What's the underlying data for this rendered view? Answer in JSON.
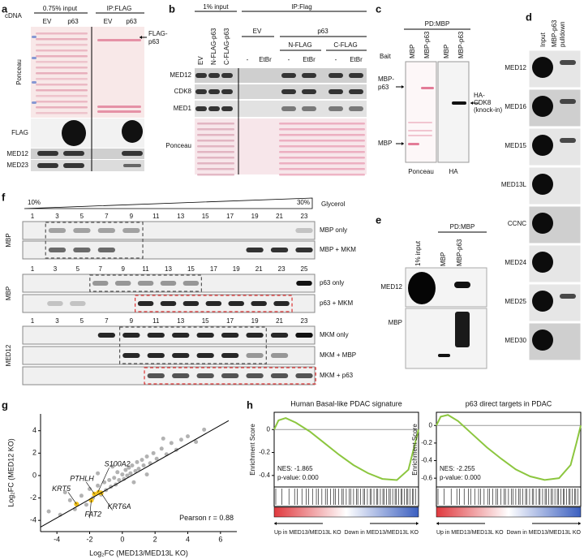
{
  "panels": {
    "a": {
      "label": "a",
      "cdna": "cDNA",
      "input_header": "0.75% input",
      "ip_header": "IP:FLAG",
      "lanes": [
        "EV",
        "p63",
        "EV",
        "p63"
      ],
      "band_label": [
        "FLAG-",
        "p63"
      ],
      "rows": [
        "Ponceau",
        "FLAG",
        "MED12",
        "MED23"
      ]
    },
    "b": {
      "label": "b",
      "input_header": "1% input",
      "ip_header": "IP:Flag",
      "input_lanes": [
        "EV",
        "N-FLAG-p63",
        "C-FLAG-p63"
      ],
      "ip_groups": [
        "EV",
        "p63"
      ],
      "ip_subgroups": [
        "N-FLAG",
        "C-FLAG"
      ],
      "treatments": [
        "-",
        "EtBr",
        "-",
        "EtBr",
        "-",
        "EtBr"
      ],
      "rows": [
        "MED12",
        "CDK8",
        "MED1",
        "Ponceau"
      ]
    },
    "c": {
      "label": "c",
      "header": "PD:MBP",
      "bait": "Bait",
      "lanes": [
        "MBP",
        "MBP-p63",
        "MBP",
        "MBP-p63"
      ],
      "left_labels": [
        [
          "MBP-",
          "p63"
        ],
        [
          "MBP"
        ]
      ],
      "right_label": [
        "HA-",
        "CDK8",
        "(knock-in)"
      ],
      "bottom": [
        "Ponceau",
        "HA"
      ]
    },
    "d": {
      "label": "d",
      "lanes": [
        [
          "Input"
        ],
        [
          "MBP-p63",
          "pulldown"
        ]
      ],
      "rows": [
        "MED12",
        "MED16",
        "MED15",
        "MED13L",
        "CCNC",
        "MED24",
        "MED25",
        "MED30"
      ]
    },
    "e": {
      "label": "e",
      "header": "PD:MBP",
      "lanes": [
        "1% input",
        "MBP",
        "MBP-p63"
      ],
      "rows": [
        "MED12",
        "MBP"
      ]
    },
    "f": {
      "label": "f",
      "gradient_low": "10%",
      "gradient_high": "30%",
      "gradient_label": "Glycerol",
      "blocks": [
        {
          "side": "MBP",
          "lanes": [
            "1",
            "3",
            "5",
            "7",
            "9",
            "11",
            "13",
            "15",
            "17",
            "19",
            "21",
            "23"
          ],
          "rows": [
            "MBP only",
            "MBP + MKM"
          ]
        },
        {
          "side": "MBP",
          "lanes": [
            "1",
            "3",
            "5",
            "7",
            "9",
            "11",
            "13",
            "15",
            "17",
            "19",
            "21",
            "23",
            "25"
          ],
          "rows": [
            "p63 only",
            "p63 + MKM"
          ]
        },
        {
          "side": "MED12",
          "lanes": [
            "1",
            "3",
            "5",
            "7",
            "9",
            "11",
            "13",
            "15",
            "17",
            "19",
            "21",
            "23"
          ],
          "rows": [
            "MKM only",
            "MKM + MBP",
            "MKM + p63"
          ]
        }
      ]
    }
  },
  "chart_data": [
    {
      "type": "scatter",
      "panel_label": "g",
      "x_label": "Log₂FC (MED13/MED13L KO)",
      "y_label": "Log₂FC (MED12 KO)",
      "xlim": [
        -5,
        7
      ],
      "ylim": [
        -5,
        5.5
      ],
      "xticks": [
        -4,
        -2,
        0,
        2,
        4,
        6
      ],
      "yticks": [
        -4,
        -2,
        0,
        2,
        4
      ],
      "series": [
        {
          "color": "#555555",
          "x": [
            -4.5,
            -3.8,
            -3.2,
            -2.9,
            -2.5,
            -2.2,
            -2,
            -1.8,
            -1.5,
            -1.3,
            -1.1,
            -1,
            -0.8,
            -0.7,
            -0.5,
            -0.4,
            -0.3,
            -0.2,
            0,
            0.1,
            0.2,
            0.3,
            0.4,
            0.5,
            0.6,
            0.8,
            0.9,
            1,
            1.2,
            1.3,
            1.5,
            1.7,
            1.9,
            2.1,
            2.4,
            2.7,
            3,
            3.3,
            3.6,
            4,
            4.5,
            5,
            -0.6,
            0.7,
            1.5,
            -1.5,
            2.5,
            -3.5
          ],
          "values": [
            -3.2,
            -3.5,
            -2.2,
            -3,
            -1.8,
            -2.6,
            -1.2,
            -2,
            -0.9,
            -1.7,
            -0.6,
            -1.3,
            -0.4,
            -1,
            -0.2,
            -0.8,
            0.3,
            -0.4,
            0.1,
            -0.3,
            0.5,
            0,
            0.7,
            0.2,
            0.9,
            0.4,
            1.2,
            0.6,
            1.4,
            0.9,
            1.7,
            1.1,
            2,
            1.5,
            2.4,
            1.9,
            2.9,
            2.3,
            3.2,
            3.5,
            3,
            4.1,
            0.8,
            -0.6,
            0.1,
            0.2,
            3.3,
            -1.5
          ]
        },
        {
          "color": "#f2c21b",
          "x": [
            -1.45,
            -1.3,
            -1.7,
            -2.8,
            -1.9
          ],
          "values": [
            -1.5,
            -1.55,
            -1.65,
            -2.55,
            -2.2
          ]
        }
      ],
      "fit_line": {
        "x": [
          -5,
          6.5
        ],
        "values": [
          -4.6,
          4.9
        ]
      },
      "annotations": [
        "S100A2",
        "PTHLH",
        "KRT5",
        "KRT6A",
        "FAT2",
        "Pearson r = 0.88"
      ]
    },
    {
      "type": "line",
      "panel_label": "h",
      "title": "Human Basal-like PDAC signature",
      "y_label": "Enrichment Score",
      "nes": "NES: -1.865",
      "pvalue": "p-value: 0.000",
      "up_label": "Up in MED13/MED13L KO",
      "down_label": "Down in MED13/MED13L KO",
      "color": "#8cc63f",
      "xlim": [
        0,
        1
      ],
      "ylim": [
        -0.5,
        0.15
      ],
      "yticks": [
        0,
        -0.2,
        -0.4
      ],
      "x": [
        0,
        0.03,
        0.08,
        0.15,
        0.25,
        0.35,
        0.45,
        0.55,
        0.65,
        0.75,
        0.85,
        0.93,
        0.97,
        1
      ],
      "values": [
        0,
        0.08,
        0.1,
        0.06,
        -0.02,
        -0.12,
        -0.22,
        -0.31,
        -0.38,
        -0.43,
        -0.44,
        -0.35,
        -0.15,
        0
      ]
    },
    {
      "type": "line",
      "title": "p63 direct targets in PDAC",
      "y_label": "Enrichment Score",
      "nes": "NES: -2.255",
      "pvalue": "p-value: 0.000",
      "up_label": "Up in MED13/MED13L KO",
      "down_label": "Down in MED13/MED13L KO",
      "color": "#8cc63f",
      "xlim": [
        0,
        1
      ],
      "ylim": [
        -0.7,
        0.15
      ],
      "yticks": [
        0,
        -0.2,
        -0.4,
        -0.6
      ],
      "x": [
        0,
        0.03,
        0.08,
        0.15,
        0.25,
        0.35,
        0.45,
        0.55,
        0.65,
        0.75,
        0.85,
        0.93,
        0.97,
        1
      ],
      "values": [
        0,
        0.1,
        0.12,
        0.05,
        -0.1,
        -0.25,
        -0.38,
        -0.5,
        -0.58,
        -0.62,
        -0.6,
        -0.45,
        -0.2,
        0
      ]
    }
  ]
}
